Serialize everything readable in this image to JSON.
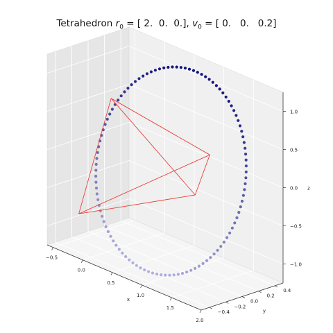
{
  "chart_data": {
    "type": "scatter",
    "title": "Tetrahedron r₀ = [ 2.  0.  0.], v₀ = [ 0.   0.   0.2]",
    "title_parts": {
      "prefix": "Tetrahedron ",
      "r_symbol": "r",
      "r_sub": "0",
      "r_value": " = [ 2.  0.  0.], ",
      "v_symbol": "v",
      "v_sub": "0",
      "v_value": " = [ 0.   0.   0.2]"
    },
    "xlabel": "x",
    "ylabel": "y",
    "zlabel": "z",
    "xlim": [
      -0.6,
      2.0
    ],
    "ylim": [
      -0.5,
      0.5
    ],
    "zlim": [
      -1.25,
      1.25
    ],
    "x_ticks": [
      "−0.5",
      "0.0",
      "0.5",
      "1.0",
      "1.5",
      "2.0"
    ],
    "y_ticks": [
      "−0.4",
      "−0.2",
      "0.0",
      "0.2",
      "0.4"
    ],
    "z_ticks": [
      "−1.0",
      "−0.5",
      "0.0",
      "0.5",
      "1.0"
    ],
    "grid": true,
    "series": [
      {
        "kind": "points",
        "color": "#1a1a8c",
        "description_of_shape": "closed orbit",
        "orbit": {
          "x_center": 0.8,
          "x_amplitude": 1.2,
          "y_center": 0.0,
          "y_amplitude": 0.3,
          "z_amplitude": 1.2,
          "n_points": 110
        }
      },
      {
        "kind": "wireframe",
        "color": "#e8413a",
        "vertices": [
          [
            -0.28,
            0.05,
            0.58
          ],
          [
            1.15,
            0.22,
            0.25
          ],
          [
            1.0,
            0.15,
            -0.3
          ],
          [
            -0.55,
            -0.15,
            -0.95
          ]
        ],
        "edges": [
          [
            0,
            1
          ],
          [
            0,
            2
          ],
          [
            0,
            3
          ],
          [
            1,
            2
          ],
          [
            1,
            3
          ],
          [
            2,
            3
          ]
        ]
      }
    ]
  },
  "colors": {
    "pane_left": "#e6e6e6",
    "pane_back": "#f0f0f0",
    "pane_floor": "#f5f5f5",
    "grid": "#ffffff",
    "point_dark": "#11117a",
    "point_light": "#b0b0e0"
  }
}
